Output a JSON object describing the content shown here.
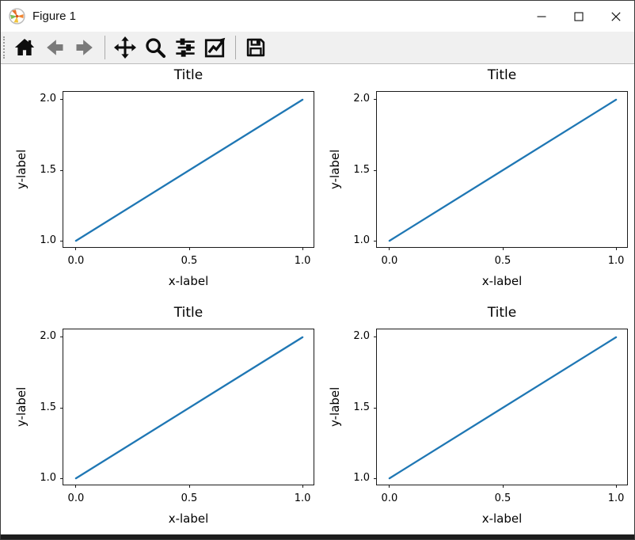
{
  "window": {
    "title": "Figure 1",
    "icon": "matplotlib-logo-icon",
    "controls": [
      {
        "name": "minimize"
      },
      {
        "name": "maximize"
      },
      {
        "name": "close"
      }
    ]
  },
  "toolbar": {
    "buttons": [
      {
        "name": "home",
        "icon": "home-icon"
      },
      {
        "name": "back",
        "icon": "back-arrow-icon"
      },
      {
        "name": "forward",
        "icon": "forward-arrow-icon"
      },
      {
        "name": "pan",
        "icon": "pan-arrows-icon"
      },
      {
        "name": "zoom",
        "icon": "zoom-magnifier-icon"
      },
      {
        "name": "configure-subplots",
        "icon": "sliders-icon"
      },
      {
        "name": "edit-parameters",
        "icon": "line-chart-icon"
      },
      {
        "name": "save",
        "icon": "floppy-disk-icon"
      }
    ]
  },
  "colors": {
    "line": "#1f77b4",
    "titlebar_bg": "#ffffff",
    "toolbar_bg": "#f0f0f0",
    "canvas_bg": "#ffffff",
    "bottom_strip": "#1d1d1d",
    "muted_arrow": "#7a7a7a"
  },
  "chart_data": [
    {
      "type": "line",
      "title": "Title",
      "xlabel": "x-label",
      "ylabel": "y-label",
      "x": [
        0,
        1
      ],
      "y": [
        1,
        2
      ],
      "xlim": [
        0,
        1
      ],
      "ylim": [
        1,
        2
      ],
      "xticks": {
        "values": [
          0.0,
          0.5,
          1.0
        ],
        "labels": [
          "0.0",
          "0.5",
          "1.0"
        ]
      },
      "yticks": {
        "values": [
          1.0,
          1.5,
          2.0
        ],
        "labels": [
          "1.0",
          "1.5",
          "2.0"
        ]
      },
      "line_color": "#1f77b4",
      "grid": false,
      "legend": null
    },
    {
      "type": "line",
      "title": "Title",
      "xlabel": "x-label",
      "ylabel": "y-label",
      "x": [
        0,
        1
      ],
      "y": [
        1,
        2
      ],
      "xlim": [
        0,
        1
      ],
      "ylim": [
        1,
        2
      ],
      "xticks": {
        "values": [
          0.0,
          0.5,
          1.0
        ],
        "labels": [
          "0.0",
          "0.5",
          "1.0"
        ]
      },
      "yticks": {
        "values": [
          1.0,
          1.5,
          2.0
        ],
        "labels": [
          "1.0",
          "1.5",
          "2.0"
        ]
      },
      "line_color": "#1f77b4",
      "grid": false,
      "legend": null
    },
    {
      "type": "line",
      "title": "Title",
      "xlabel": "x-label",
      "ylabel": "y-label",
      "x": [
        0,
        1
      ],
      "y": [
        1,
        2
      ],
      "xlim": [
        0,
        1
      ],
      "ylim": [
        1,
        2
      ],
      "xticks": {
        "values": [
          0.0,
          0.5,
          1.0
        ],
        "labels": [
          "0.0",
          "0.5",
          "1.0"
        ]
      },
      "yticks": {
        "values": [
          1.0,
          1.5,
          2.0
        ],
        "labels": [
          "1.0",
          "1.5",
          "2.0"
        ]
      },
      "line_color": "#1f77b4",
      "grid": false,
      "legend": null
    },
    {
      "type": "line",
      "title": "Title",
      "xlabel": "x-label",
      "ylabel": "y-label",
      "x": [
        0,
        1
      ],
      "y": [
        1,
        2
      ],
      "xlim": [
        0,
        1
      ],
      "ylim": [
        1,
        2
      ],
      "xticks": {
        "values": [
          0.0,
          0.5,
          1.0
        ],
        "labels": [
          "0.0",
          "0.5",
          "1.0"
        ]
      },
      "yticks": {
        "values": [
          1.0,
          1.5,
          2.0
        ],
        "labels": [
          "1.0",
          "1.5",
          "2.0"
        ]
      },
      "line_color": "#1f77b4",
      "grid": false,
      "legend": null
    }
  ]
}
